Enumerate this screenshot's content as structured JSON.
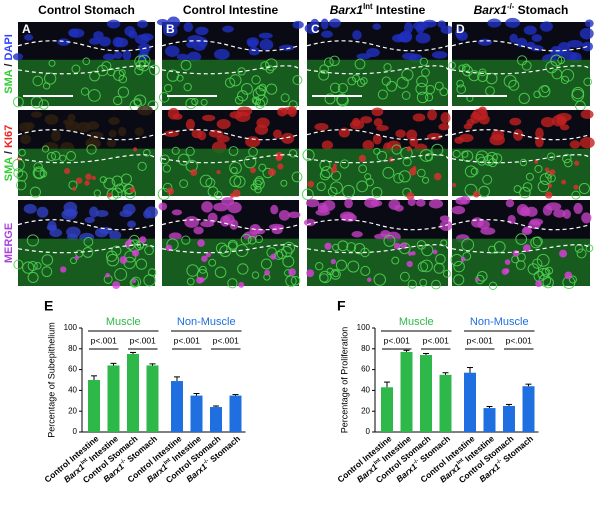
{
  "panel_labels": [
    "A",
    "B",
    "C",
    "D"
  ],
  "column_headers": [
    [
      {
        "t": "Control Stomach"
      }
    ],
    [
      {
        "t": "Control Intestine"
      }
    ],
    [
      {
        "t": "Barx1",
        "style": "i"
      },
      {
        "t": "Int",
        "style": "sup"
      },
      {
        "t": " Intestine"
      }
    ],
    [
      {
        "t": "Barx1",
        "style": "i"
      },
      {
        "t": "-/-",
        "style": "sup"
      },
      {
        "t": " Stomach"
      }
    ]
  ],
  "row_labels": [
    [
      {
        "t": "SMA",
        "c": "#33cc33"
      },
      {
        "t": " / ",
        "c": "#222222"
      },
      {
        "t": "DAPI",
        "c": "#3344ff"
      }
    ],
    [
      {
        "t": "SMA",
        "c": "#33cc33"
      },
      {
        "t": " / ",
        "c": "#222222"
      },
      {
        "t": "KI67",
        "c": "#ee2222"
      }
    ],
    [
      {
        "t": "MERGE",
        "c": "#aa44dd"
      }
    ]
  ],
  "chart_data": [
    {
      "type": "bar",
      "panel": "E",
      "ylabel": "Percentage of Subepithelium",
      "ylim": [
        0,
        100
      ],
      "yticks": [
        0,
        20,
        40,
        60,
        80,
        100
      ],
      "categories": [
        [
          {
            "t": "Control Intestine"
          }
        ],
        [
          {
            "t": "Barx1",
            "style": "i"
          },
          {
            "t": "Int",
            "style": "sup"
          },
          {
            "t": " Intestine"
          }
        ],
        [
          {
            "t": "Control Stomach"
          }
        ],
        [
          {
            "t": "Barx1",
            "style": "i"
          },
          {
            "t": "-/-",
            "style": "sup"
          },
          {
            "t": " Stomach"
          }
        ],
        [
          {
            "t": "Control Intestine"
          }
        ],
        [
          {
            "t": "Barx1",
            "style": "i"
          },
          {
            "t": "Int",
            "style": "sup"
          },
          {
            "t": " Intestine"
          }
        ],
        [
          {
            "t": "Control Stomach"
          }
        ],
        [
          {
            "t": "Barx1",
            "style": "i"
          },
          {
            "t": "-/-",
            "style": "sup"
          },
          {
            "t": " Stomach"
          }
        ]
      ],
      "series": [
        {
          "name": "Muscle",
          "color": "#2fb84a",
          "values": [
            50,
            64,
            75,
            64,
            null,
            null,
            null,
            null
          ],
          "errors": [
            4,
            2,
            1.5,
            1.5,
            null,
            null,
            null,
            null
          ]
        },
        {
          "name": "Non-Muscle",
          "color": "#1f6fe0",
          "values": [
            null,
            null,
            null,
            null,
            49,
            35,
            24,
            35
          ],
          "errors": [
            null,
            null,
            null,
            null,
            4,
            2,
            1,
            1
          ]
        }
      ],
      "annotations": [
        "p<.001",
        "p<.001",
        "p<.001",
        "p<.001"
      ]
    },
    {
      "type": "bar",
      "panel": "F",
      "ylabel": "Percentage of Proliferation",
      "ylim": [
        0,
        100
      ],
      "yticks": [
        0,
        20,
        40,
        60,
        80,
        100
      ],
      "categories": [
        [
          {
            "t": "Control Intestine"
          }
        ],
        [
          {
            "t": "Barx1",
            "style": "i"
          },
          {
            "t": "Int",
            "style": "sup"
          },
          {
            "t": " Intestine"
          }
        ],
        [
          {
            "t": "Control Stomach"
          }
        ],
        [
          {
            "t": "Barx1",
            "style": "i"
          },
          {
            "t": "-/-",
            "style": "sup"
          },
          {
            "t": " Stomach"
          }
        ],
        [
          {
            "t": "Control Intestine"
          }
        ],
        [
          {
            "t": "Barx1",
            "style": "i"
          },
          {
            "t": "Int",
            "style": "sup"
          },
          {
            "t": " Intestine"
          }
        ],
        [
          {
            "t": "Control Stomach"
          }
        ],
        [
          {
            "t": "Barx1",
            "style": "i"
          },
          {
            "t": "-/-",
            "style": "sup"
          },
          {
            "t": " Stomach"
          }
        ]
      ],
      "series": [
        {
          "name": "Muscle",
          "color": "#2fb84a",
          "values": [
            43,
            77,
            74,
            55,
            null,
            null,
            null,
            null
          ],
          "errors": [
            5,
            1.5,
            1.5,
            2,
            null,
            null,
            null,
            null
          ]
        },
        {
          "name": "Non-Muscle",
          "color": "#1f6fe0",
          "values": [
            null,
            null,
            null,
            null,
            57,
            23,
            25,
            44
          ],
          "errors": [
            null,
            null,
            null,
            null,
            5,
            1.5,
            1.5,
            2
          ]
        }
      ],
      "annotations": [
        "p<.001",
        "p<.001",
        "p<.001",
        "p<.001"
      ]
    }
  ]
}
